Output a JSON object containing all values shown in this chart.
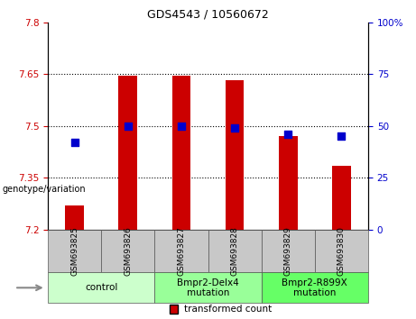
{
  "title": "GDS4543 / 10560672",
  "samples": [
    "GSM693825",
    "GSM693826",
    "GSM693827",
    "GSM693828",
    "GSM693829",
    "GSM693830"
  ],
  "bar_values": [
    7.27,
    7.645,
    7.645,
    7.632,
    7.47,
    7.385
  ],
  "bar_bottom": 7.2,
  "percentile_values": [
    42,
    50,
    50,
    49,
    46,
    45
  ],
  "ylim_left": [
    7.2,
    7.8
  ],
  "ylim_right": [
    0,
    100
  ],
  "yticks_left": [
    7.2,
    7.35,
    7.5,
    7.65,
    7.8
  ],
  "yticks_right": [
    0,
    25,
    50,
    75,
    100
  ],
  "ytick_labels_left": [
    "7.2",
    "7.35",
    "7.5",
    "7.65",
    "7.8"
  ],
  "ytick_labels_right": [
    "0",
    "25",
    "50",
    "75",
    "100%"
  ],
  "hlines": [
    7.35,
    7.5,
    7.65
  ],
  "bar_color": "#cc0000",
  "dot_color": "#0000cc",
  "groups": [
    {
      "label": "control",
      "indices": [
        0,
        1
      ],
      "color": "#ccffcc"
    },
    {
      "label": "Bmpr2-Delx4\nmutation",
      "indices": [
        2,
        3
      ],
      "color": "#99ff99"
    },
    {
      "label": "Bmpr2-R899X\nmutation",
      "indices": [
        4,
        5
      ],
      "color": "#66ff66"
    }
  ],
  "tick_bg_color": "#c8c8c8",
  "bar_width": 0.35,
  "dot_size": 30,
  "title_fontsize": 9,
  "tick_fontsize": 7.5,
  "sample_fontsize": 6.5,
  "group_fontsize": 7.5,
  "legend_fontsize": 7.5
}
